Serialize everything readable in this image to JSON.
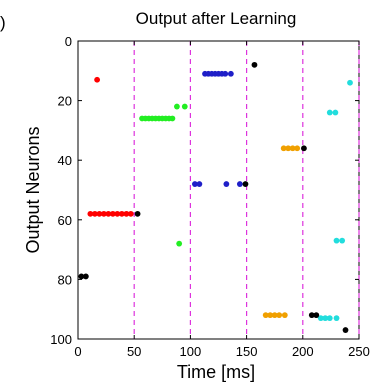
{
  "panel_label": ")",
  "chart_data": {
    "type": "scatter",
    "title": "Output after Learning",
    "xlabel": "Time [ms]",
    "ylabel": "Output Neurons",
    "xlim": [
      0,
      250
    ],
    "ylim": [
      100,
      0
    ],
    "y_inverted": true,
    "grid": false,
    "legend": "none",
    "x_ticks": [
      0,
      50,
      100,
      150,
      200,
      250
    ],
    "y_ticks": [
      0,
      20,
      40,
      60,
      80,
      100
    ],
    "vlines": {
      "x": [
        50,
        100,
        150,
        200,
        250
      ],
      "color": "#dd33dd",
      "style": "dashed"
    },
    "series": [
      {
        "color": "#ff0000",
        "points": [
          [
            17,
            13
          ],
          [
            11,
            58
          ],
          [
            15,
            58
          ],
          [
            19,
            58
          ],
          [
            23,
            58
          ],
          [
            27,
            58
          ],
          [
            31,
            58
          ],
          [
            35,
            58
          ],
          [
            39,
            58
          ],
          [
            43,
            58
          ],
          [
            47,
            58
          ]
        ]
      },
      {
        "color": "#22ee22",
        "points": [
          [
            57,
            26
          ],
          [
            60,
            26
          ],
          [
            63,
            26
          ],
          [
            66,
            26
          ],
          [
            69,
            26
          ],
          [
            72,
            26
          ],
          [
            75,
            26
          ],
          [
            78,
            26
          ],
          [
            81,
            26
          ],
          [
            84,
            26
          ],
          [
            88,
            22
          ],
          [
            95,
            22
          ],
          [
            90,
            68
          ]
        ]
      },
      {
        "color": "#1f1fc8",
        "points": [
          [
            113,
            11
          ],
          [
            116,
            11
          ],
          [
            119,
            11
          ],
          [
            122,
            11
          ],
          [
            125,
            11
          ],
          [
            128,
            11
          ],
          [
            131,
            11
          ],
          [
            136,
            11
          ],
          [
            104,
            48
          ],
          [
            108,
            48
          ],
          [
            132,
            48
          ],
          [
            144,
            48
          ]
        ]
      },
      {
        "color": "#f0a000",
        "points": [
          [
            183,
            36
          ],
          [
            187,
            36
          ],
          [
            191,
            36
          ],
          [
            195,
            36
          ],
          [
            167,
            92
          ],
          [
            171,
            92
          ],
          [
            175,
            92
          ],
          [
            179,
            92
          ],
          [
            184,
            92
          ]
        ]
      },
      {
        "color": "#22dddd",
        "points": [
          [
            242,
            14
          ],
          [
            224,
            24
          ],
          [
            229,
            24
          ],
          [
            230,
            67
          ],
          [
            235,
            67
          ],
          [
            216,
            93
          ],
          [
            220,
            93
          ],
          [
            224,
            93
          ],
          [
            230,
            93
          ]
        ]
      },
      {
        "color": "#000000",
        "points": [
          [
            3,
            79
          ],
          [
            7,
            79
          ],
          [
            53,
            58
          ],
          [
            149,
            48
          ],
          [
            157,
            8
          ],
          [
            201,
            36
          ],
          [
            208,
            92
          ],
          [
            212,
            92
          ],
          [
            238,
            97
          ]
        ]
      }
    ]
  }
}
